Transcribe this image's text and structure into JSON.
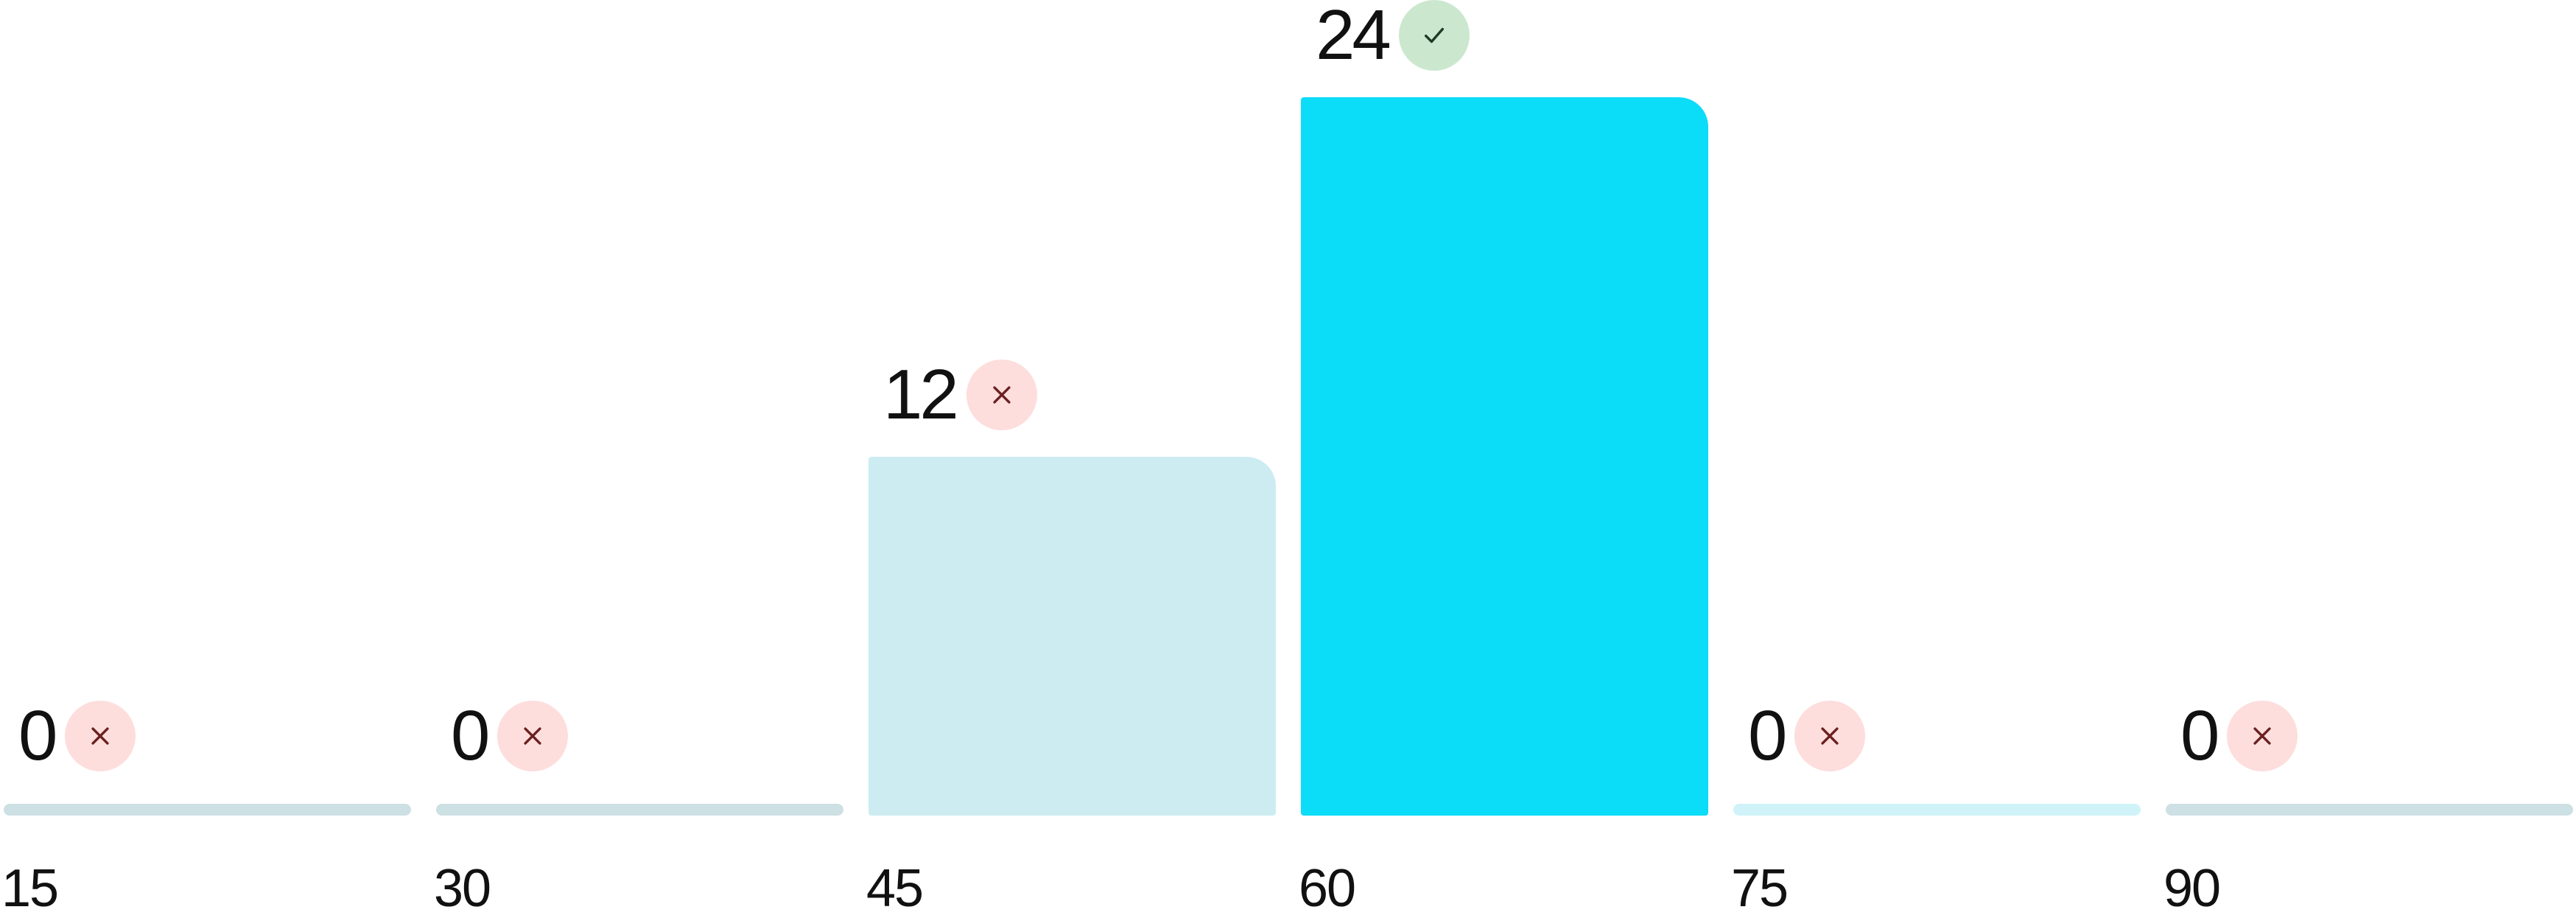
{
  "chart_data": {
    "type": "bar",
    "categories": [
      "15",
      "30",
      "45",
      "60",
      "75",
      "90"
    ],
    "values": [
      0,
      0,
      12,
      24,
      0,
      0
    ],
    "ylim": [
      0,
      24
    ],
    "grid": false,
    "status": [
      "incorrect",
      "incorrect",
      "incorrect",
      "correct",
      "incorrect",
      "incorrect"
    ],
    "bar_colors": [
      "#cde0e4",
      "#cde0e4",
      "#cdecf2",
      "#0bdcf8",
      "#cff3f8",
      "#cde0e4"
    ]
  },
  "badge_style": {
    "correct": {
      "background": "#cbe8cf",
      "icon": "check-icon",
      "icon_color": "#1f3a24"
    },
    "incorrect": {
      "background": "#fddedc",
      "icon": "close-icon",
      "icon_color": "#6a2020"
    }
  }
}
